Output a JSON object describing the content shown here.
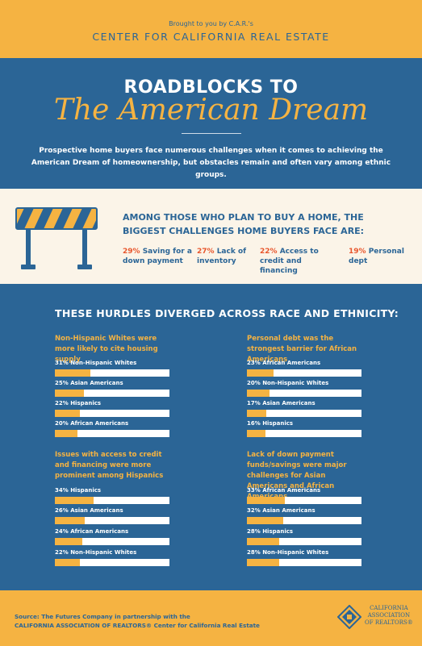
{
  "header": {
    "brought": "Brought to you by C.A.R.'s",
    "center": "CENTER FOR CALIFORNIA REAL ESTATE"
  },
  "title": {
    "line1": "ROADBLOCKS TO",
    "line2": "The American Dream",
    "intro": "Prospective home buyers face numerous challenges when it comes to achieving the American Dream of homeownership, but obstacles remain and often vary among ethnic groups."
  },
  "challenges": {
    "heading": "AMONG THOSE WHO PLAN TO BUY A HOME, THE BIGGEST CHALLENGES HOME BUYERS FACE ARE:",
    "items": [
      {
        "pct": "29%",
        "label": "Saving for a down payment"
      },
      {
        "pct": "27%",
        "label": "Lack of inventory"
      },
      {
        "pct": "22%",
        "label": "Access to credit and financing"
      },
      {
        "pct": "19%",
        "label": "Personal dept"
      }
    ]
  },
  "hurdles": {
    "heading": "THESE HURDLES DIVERGED ACROSS RACE AND ETHNICITY:",
    "panels": [
      {
        "title": "Non-Hispanic Whites were more likely to cite housing supply",
        "rows": [
          {
            "label": "31% Non-Hispanic Whites",
            "value": 31
          },
          {
            "label": "25% Asian Americans",
            "value": 25
          },
          {
            "label": "22% Hispanics",
            "value": 22
          },
          {
            "label": "20% African Americans",
            "value": 20
          }
        ]
      },
      {
        "title": "Personal debt was the strongest barrier for African Americans",
        "rows": [
          {
            "label": "23% African Americans",
            "value": 23
          },
          {
            "label": "20% Non-Hispanic Whites",
            "value": 20
          },
          {
            "label": "17% Asian Americans",
            "value": 17
          },
          {
            "label": "16% Hispanics",
            "value": 16
          }
        ]
      },
      {
        "title": "Issues with access to credit and financing were more prominent among Hispanics",
        "rows": [
          {
            "label": "34% Hispanics",
            "value": 34
          },
          {
            "label": "26% Asian Americans",
            "value": 26
          },
          {
            "label": "24% African Americans",
            "value": 24
          },
          {
            "label": "22% Non-Hispanic Whites",
            "value": 22
          }
        ]
      },
      {
        "title": "Lack of down payment funds/savings were major challenges for Asian Americans and African Americans",
        "rows": [
          {
            "label": "33% African Americans",
            "value": 33
          },
          {
            "label": "32% Asian Americans",
            "value": 32
          },
          {
            "label": "28% Hispanics",
            "value": 28
          },
          {
            "label": "28% Non-Hispanic Whites",
            "value": 28
          }
        ]
      }
    ]
  },
  "footer": {
    "source_line1": "Source: The Futures Company in partnership with the",
    "source_line2": "CALIFORNIA ASSOCIATION OF REALTORS® Center for California Real Estate",
    "logo_line1": "CALIFORNIA",
    "logo_line2": "ASSOCIATION",
    "logo_line3": "OF REALTORS®"
  },
  "colors": {
    "blue": "#2b6596",
    "gold": "#f5b342",
    "orange": "#e8572e",
    "cream": "#fbf4e8"
  }
}
